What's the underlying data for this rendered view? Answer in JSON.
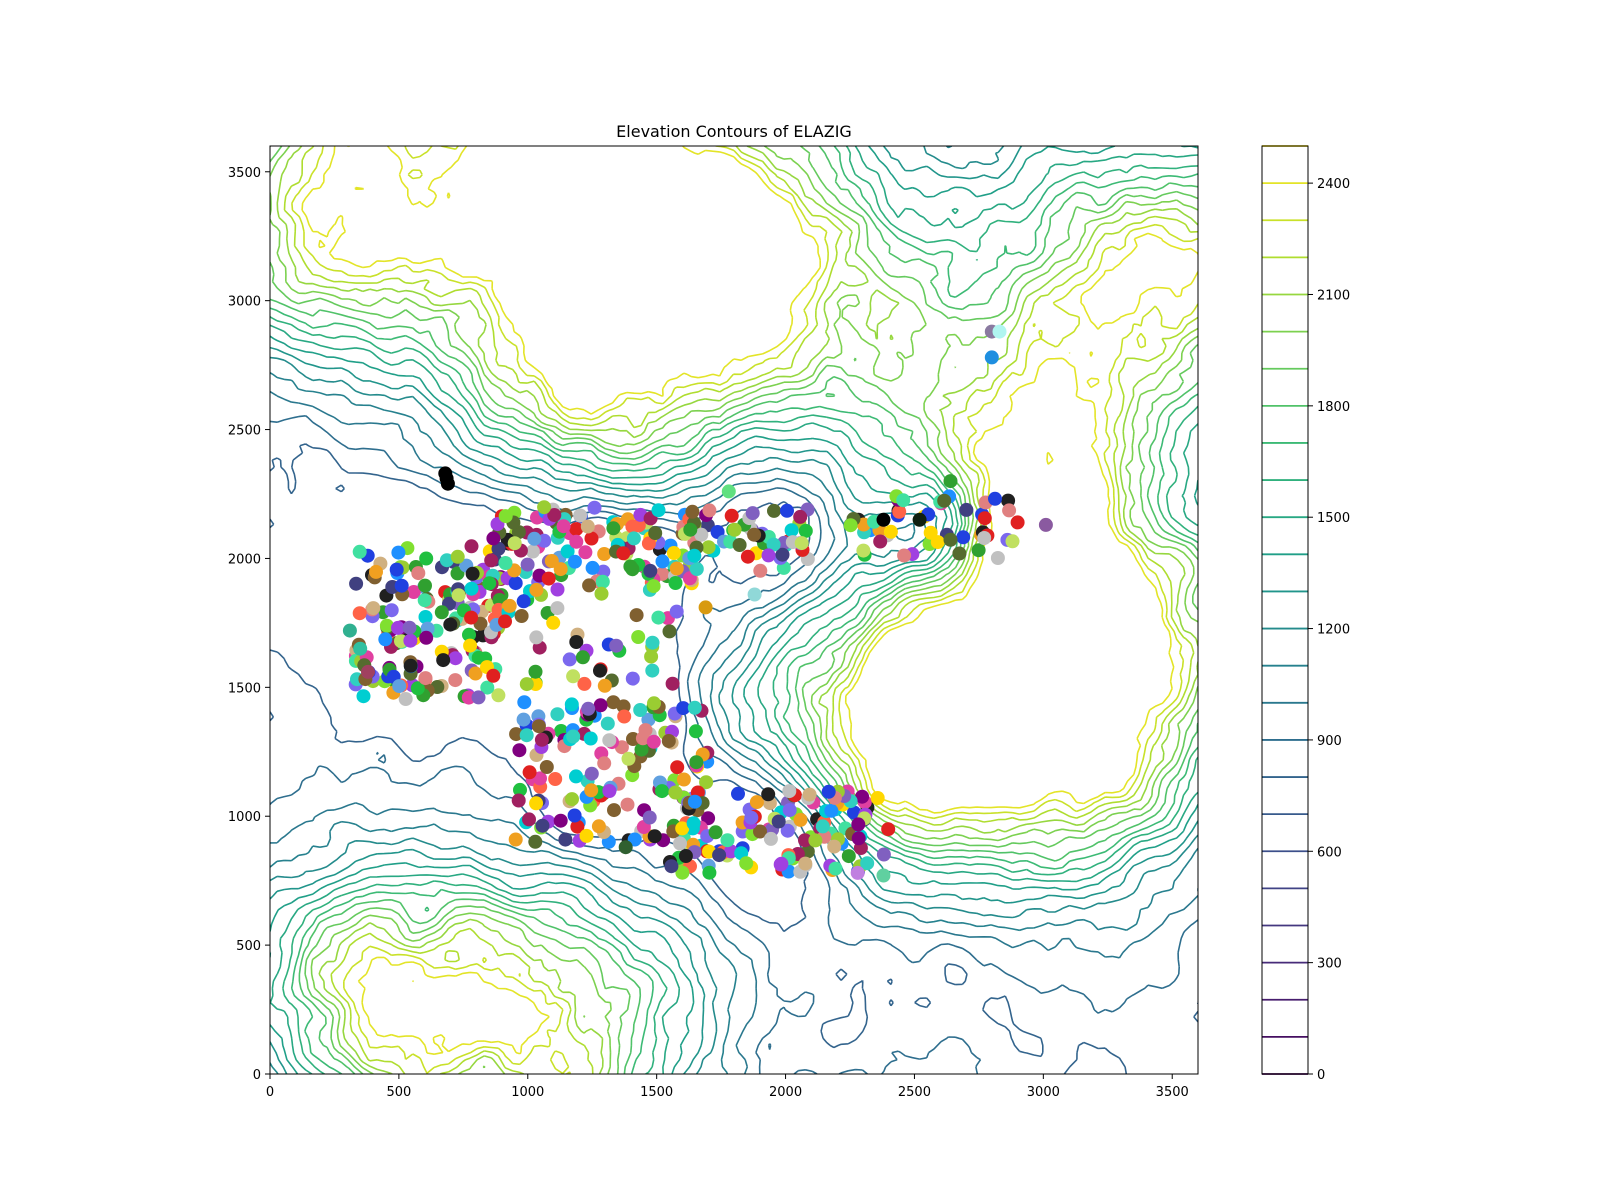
{
  "chart_data": {
    "type": "contour",
    "title": "Elevation Contours of ELAZIG",
    "xlabel": "",
    "ylabel": "",
    "xlim": [
      0,
      3600
    ],
    "ylim": [
      0,
      3600
    ],
    "x_ticks": [
      0,
      500,
      1000,
      1500,
      2000,
      2500,
      3000,
      3500
    ],
    "y_ticks": [
      0,
      500,
      1000,
      1500,
      2000,
      2500,
      3000,
      3500
    ],
    "colorbar": {
      "range": [
        0,
        2500
      ],
      "ticks": [
        0,
        300,
        600,
        900,
        1200,
        1500,
        1800,
        2100,
        2400
      ],
      "levels_step": 100,
      "colormap": "viridis"
    },
    "contour_levels": [
      0,
      100,
      200,
      300,
      400,
      500,
      600,
      700,
      800,
      900,
      1000,
      1100,
      1200,
      1300,
      1400,
      1500,
      1600,
      1700,
      1800,
      1900,
      2000,
      2100,
      2200,
      2300,
      2400,
      2500
    ],
    "terrain_peaks": [
      {
        "x": 300,
        "y": 3350,
        "elev": 2300
      },
      {
        "x": 1400,
        "y": 3200,
        "elev": 2350
      },
      {
        "x": 1300,
        "y": 2700,
        "elev": 2300
      },
      {
        "x": 2850,
        "y": 2450,
        "elev": 2400
      },
      {
        "x": 3450,
        "y": 3100,
        "elev": 2300
      },
      {
        "x": 1150,
        "y": 3550,
        "elev": 2300
      },
      {
        "x": 3150,
        "y": 1350,
        "elev": 2200
      },
      {
        "x": 3300,
        "y": 1800,
        "elev": 2000
      },
      {
        "x": 2700,
        "y": 1350,
        "elev": 2100
      },
      {
        "x": 450,
        "y": 300,
        "elev": 2250
      },
      {
        "x": 1150,
        "y": 150,
        "elev": 2250
      },
      {
        "x": 2300,
        "y": 1400,
        "elev": 1900
      },
      {
        "x": 2050,
        "y": 3150,
        "elev": 2100
      }
    ],
    "scatter_clusters": [
      {
        "x_range": [
          330,
          900
        ],
        "y_range": [
          1450,
          2050
        ],
        "count": 170
      },
      {
        "x_range": [
          850,
          1700
        ],
        "y_range": [
          1900,
          2200
        ],
        "count": 130
      },
      {
        "x_range": [
          1600,
          2100
        ],
        "y_range": [
          1950,
          2200
        ],
        "count": 50
      },
      {
        "x_range": [
          2250,
          2900
        ],
        "y_range": [
          2000,
          2250
        ],
        "count": 50
      },
      {
        "x_range": [
          900,
          1600
        ],
        "y_range": [
          1500,
          1900
        ],
        "count": 50
      },
      {
        "x_range": [
          950,
          1700
        ],
        "y_range": [
          900,
          1450
        ],
        "count": 150
      },
      {
        "x_range": [
          1550,
          2400
        ],
        "y_range": [
          780,
          1100
        ],
        "count": 130
      }
    ],
    "scatter_points": [
      {
        "x": 680,
        "y": 2330,
        "color": "#000000"
      },
      {
        "x": 685,
        "y": 2310,
        "color": "#000000"
      },
      {
        "x": 690,
        "y": 2290,
        "color": "#000000"
      },
      {
        "x": 2800,
        "y": 2880,
        "color": "#8a7aa0"
      },
      {
        "x": 2830,
        "y": 2880,
        "color": "#b0f5f0"
      },
      {
        "x": 2800,
        "y": 2780,
        "color": "#1e8fe0"
      },
      {
        "x": 3010,
        "y": 2130,
        "color": "#8a5aa0"
      },
      {
        "x": 1690,
        "y": 1810,
        "color": "#d89a10"
      },
      {
        "x": 1880,
        "y": 1860,
        "color": "#90d8d8"
      },
      {
        "x": 1780,
        "y": 2260,
        "color": "#60e080"
      },
      {
        "x": 2640,
        "y": 2300,
        "color": "#30a030"
      },
      {
        "x": 310,
        "y": 1720,
        "color": "#30b090"
      },
      {
        "x": 350,
        "y": 1650,
        "color": "#30c0a0"
      },
      {
        "x": 380,
        "y": 1560,
        "color": "#a04060"
      },
      {
        "x": 1380,
        "y": 880,
        "color": "#306030"
      },
      {
        "x": 2380,
        "y": 770,
        "color": "#60d0a0"
      },
      {
        "x": 2280,
        "y": 780,
        "color": "#c080e0"
      },
      {
        "x": 2380,
        "y": 2150,
        "color": "#000000"
      },
      {
        "x": 2520,
        "y": 2150,
        "color": "#102010"
      },
      {
        "x": 2900,
        "y": 2140,
        "color": "#e02020"
      }
    ]
  }
}
